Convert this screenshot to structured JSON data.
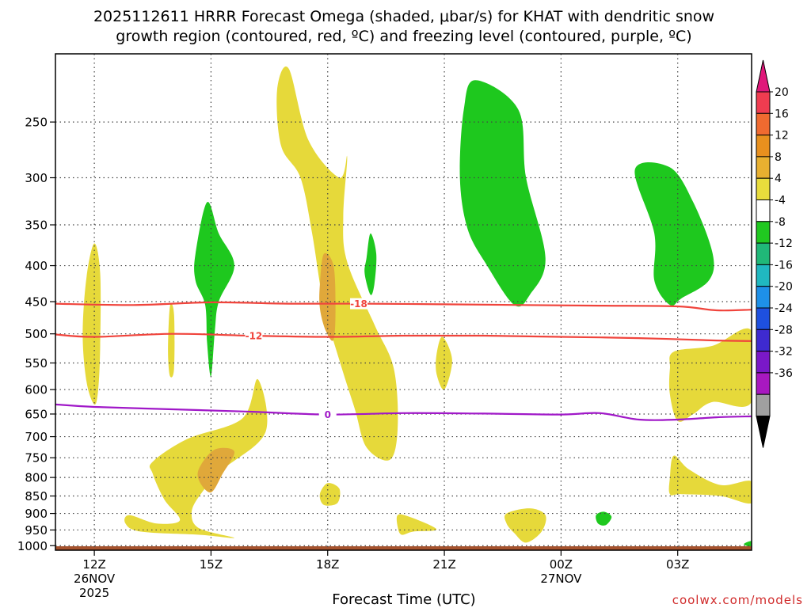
{
  "title": {
    "line1": "2025112611 HRRR Forecast Omega (shaded, μbar/s) for KHAT with dendritic snow",
    "line2": "growth region (contoured, red, ºC) and freezing level (contoured, purple, ºC)"
  },
  "credit": "coolwx.com/models",
  "chart_data": {
    "type": "contour",
    "xlabel": "Forecast Time (UTC)",
    "x_ticks": [
      {
        "hour": 12,
        "lines": [
          "12Z",
          "26NOV",
          "2025"
        ]
      },
      {
        "hour": 15,
        "lines": [
          "15Z"
        ]
      },
      {
        "hour": 18,
        "lines": [
          "18Z"
        ]
      },
      {
        "hour": 21,
        "lines": [
          "21Z"
        ]
      },
      {
        "hour": 24,
        "lines": [
          "00Z",
          "27NOV"
        ]
      },
      {
        "hour": 27,
        "lines": [
          "03Z"
        ]
      }
    ],
    "xlim_hours": [
      11,
      28.9
    ],
    "y_ticks_hPa": [
      250,
      300,
      350,
      400,
      450,
      500,
      550,
      600,
      650,
      700,
      750,
      800,
      850,
      900,
      950,
      1000
    ],
    "ylim_hPa": [
      200,
      1015
    ],
    "yscale": "log",
    "grid": true,
    "colorbar": {
      "labels": [
        "20",
        "16",
        "12",
        "8",
        "4",
        "-4",
        "-8",
        "-12",
        "-16",
        "-20",
        "-24",
        "-28",
        "-32",
        "-36"
      ],
      "colors": [
        "#f03c50",
        "#f06a30",
        "#e8901e",
        "#e8b030",
        "#e8dc3c",
        "#ffffff",
        "#20c820",
        "#20b878",
        "#20b8c0",
        "#1e90e8",
        "#1e50e0",
        "#3e2ad0",
        "#7a18c8",
        "#a818c0",
        "#a0a0a0"
      ],
      "top_arrow_color": "#e0187a",
      "bottom_arrow_color": "#000000"
    },
    "shading_colors": {
      "omega_4_8": "#e6d93a",
      "omega_8_12": "#e0a83a",
      "omega_neg4_neg8": "#1ec81e",
      "ground": "#a5522d"
    },
    "contours": [
      {
        "name": "-18",
        "label": "-18",
        "color": "#f0443c",
        "label_hour": 18.8,
        "points": [
          [
            11,
            453
          ],
          [
            13,
            455
          ],
          [
            15,
            451
          ],
          [
            17,
            453
          ],
          [
            19,
            453
          ],
          [
            21,
            454
          ],
          [
            23,
            455
          ],
          [
            25,
            456
          ],
          [
            27,
            457
          ],
          [
            28,
            463
          ],
          [
            28.9,
            462
          ]
        ]
      },
      {
        "name": "-12",
        "label": "-12",
        "color": "#f0443c",
        "label_hour": 16.1,
        "points": [
          [
            11,
            501
          ],
          [
            12,
            505
          ],
          [
            14,
            500
          ],
          [
            16,
            503
          ],
          [
            18,
            505
          ],
          [
            20,
            503
          ],
          [
            22,
            503
          ],
          [
            24,
            505
          ],
          [
            26,
            507
          ],
          [
            28,
            511
          ],
          [
            28.9,
            512
          ]
        ]
      },
      {
        "name": "0",
        "label": "0",
        "color": "#a018c8",
        "label_hour": 18,
        "points": [
          [
            11,
            630
          ],
          [
            12,
            635
          ],
          [
            14,
            640
          ],
          [
            16,
            645
          ],
          [
            18,
            651
          ],
          [
            20,
            648
          ],
          [
            22,
            649
          ],
          [
            24,
            651
          ],
          [
            25,
            648
          ],
          [
            26,
            662
          ],
          [
            27,
            662
          ],
          [
            28,
            657
          ],
          [
            28.9,
            655
          ]
        ]
      }
    ],
    "omega_regions": [
      {
        "level": "4_8",
        "points": [
          [
            11.8,
            415
          ],
          [
            12.0,
            372
          ],
          [
            12.15,
            410
          ],
          [
            12.15,
            520
          ],
          [
            12.1,
            600
          ],
          [
            12.0,
            630
          ],
          [
            11.8,
            585
          ],
          [
            11.7,
            500
          ]
        ]
      },
      {
        "level": "4_8",
        "points": [
          [
            13.9,
            505
          ],
          [
            13.95,
            455
          ],
          [
            14.05,
            470
          ],
          [
            14.05,
            560
          ],
          [
            13.95,
            575
          ],
          [
            13.9,
            545
          ]
        ]
      },
      {
        "level": "4_8",
        "points": [
          [
            13.5,
            760
          ],
          [
            14.4,
            705
          ],
          [
            15.8,
            660
          ],
          [
            16.2,
            580
          ],
          [
            16.4,
            690
          ],
          [
            15.3,
            780
          ],
          [
            14.7,
            850
          ],
          [
            14.5,
            900
          ],
          [
            14.7,
            945
          ],
          [
            15.6,
            975
          ],
          [
            14.7,
            965
          ],
          [
            13.2,
            955
          ],
          [
            12.8,
            930
          ],
          [
            12.9,
            905
          ],
          [
            13.6,
            930
          ],
          [
            14.2,
            920
          ],
          [
            13.8,
            860
          ],
          [
            13.5,
            790
          ]
        ]
      },
      {
        "level": "4_8",
        "points": [
          [
            16.7,
            225
          ],
          [
            17.0,
            210
          ],
          [
            17.5,
            265
          ],
          [
            18.3,
            300
          ],
          [
            18.5,
            280
          ],
          [
            18.4,
            340
          ],
          [
            18.5,
            395
          ],
          [
            19.2,
            485
          ],
          [
            19.7,
            560
          ],
          [
            19.8,
            680
          ],
          [
            19.6,
            755
          ],
          [
            19.0,
            725
          ],
          [
            18.7,
            640
          ],
          [
            18.3,
            545
          ],
          [
            17.9,
            455
          ],
          [
            17.6,
            360
          ],
          [
            17.3,
            300
          ],
          [
            16.8,
            270
          ]
        ]
      },
      {
        "level": "4_8",
        "points": [
          [
            17.8,
            845
          ],
          [
            18.0,
            815
          ],
          [
            18.3,
            830
          ],
          [
            18.25,
            870
          ],
          [
            17.9,
            875
          ]
        ]
      },
      {
        "level": "4_8",
        "points": [
          [
            19.8,
            905
          ],
          [
            20.1,
            910
          ],
          [
            20.8,
            948
          ],
          [
            20.2,
            955
          ],
          [
            19.9,
            965
          ],
          [
            19.8,
            940
          ]
        ]
      },
      {
        "level": "4_8",
        "points": [
          [
            20.8,
            535
          ],
          [
            20.95,
            505
          ],
          [
            21.2,
            545
          ],
          [
            21.0,
            600
          ],
          [
            20.8,
            570
          ]
        ]
      },
      {
        "level": "4_8",
        "points": [
          [
            22.6,
            900
          ],
          [
            23.2,
            885
          ],
          [
            23.6,
            905
          ],
          [
            23.5,
            955
          ],
          [
            23.1,
            990
          ],
          [
            22.8,
            960
          ],
          [
            22.6,
            930
          ]
        ]
      },
      {
        "level": "4_8",
        "points": [
          [
            26.8,
            560
          ],
          [
            26.9,
            530
          ],
          [
            27.9,
            520
          ],
          [
            28.9,
            495
          ],
          [
            28.9,
            625
          ],
          [
            27.9,
            625
          ],
          [
            27.4,
            650
          ],
          [
            27.0,
            665
          ],
          [
            26.8,
            610
          ]
        ]
      },
      {
        "level": "4_8",
        "points": [
          [
            26.8,
            800
          ],
          [
            26.9,
            745
          ],
          [
            27.3,
            780
          ],
          [
            28.1,
            820
          ],
          [
            28.9,
            810
          ],
          [
            28.9,
            870
          ],
          [
            28.1,
            850
          ],
          [
            27.1,
            845
          ],
          [
            26.8,
            845
          ]
        ]
      },
      {
        "level": "8_12",
        "points": [
          [
            17.8,
            425
          ],
          [
            17.9,
            385
          ],
          [
            18.15,
            400
          ],
          [
            18.2,
            460
          ],
          [
            18.15,
            510
          ],
          [
            17.95,
            495
          ],
          [
            17.8,
            460
          ]
        ]
      },
      {
        "level": "8_12",
        "points": [
          [
            14.7,
            775
          ],
          [
            15.1,
            730
          ],
          [
            15.6,
            735
          ],
          [
            15.3,
            790
          ],
          [
            15.0,
            840
          ],
          [
            14.7,
            810
          ]
        ]
      },
      {
        "level": "neg4_neg8",
        "points": [
          [
            14.6,
            385
          ],
          [
            14.9,
            325
          ],
          [
            15.2,
            360
          ],
          [
            15.6,
            400
          ],
          [
            15.2,
            450
          ],
          [
            15.1,
            495
          ],
          [
            15.0,
            575
          ],
          [
            14.9,
            515
          ],
          [
            14.85,
            455
          ],
          [
            14.6,
            420
          ]
        ]
      },
      {
        "level": "neg4_neg8",
        "points": [
          [
            19.0,
            390
          ],
          [
            19.1,
            360
          ],
          [
            19.25,
            385
          ],
          [
            19.2,
            425
          ],
          [
            19.1,
            440
          ],
          [
            18.95,
            410
          ]
        ]
      },
      {
        "level": "neg4_neg8",
        "points": [
          [
            21.5,
            240
          ],
          [
            21.8,
            218
          ],
          [
            22.9,
            240
          ],
          [
            23.1,
            300
          ],
          [
            23.6,
            390
          ],
          [
            23.2,
            440
          ],
          [
            22.8,
            455
          ],
          [
            22.1,
            400
          ],
          [
            21.6,
            355
          ],
          [
            21.4,
            300
          ]
        ]
      },
      {
        "level": "neg4_neg8",
        "points": [
          [
            25.9,
            292
          ],
          [
            26.8,
            290
          ],
          [
            27.4,
            325
          ],
          [
            27.9,
            385
          ],
          [
            27.8,
            420
          ],
          [
            27.1,
            445
          ],
          [
            26.8,
            455
          ],
          [
            26.4,
            420
          ],
          [
            26.4,
            360
          ]
        ]
      },
      {
        "level": "neg4_neg8",
        "points": [
          [
            24.9,
            905
          ],
          [
            25.1,
            895
          ],
          [
            25.3,
            910
          ],
          [
            25.15,
            935
          ],
          [
            24.95,
            930
          ]
        ]
      },
      {
        "level": "neg4_neg8",
        "points": [
          [
            28.7,
            995
          ],
          [
            28.9,
            985
          ],
          [
            28.9,
            1005
          ]
        ]
      }
    ],
    "ground": {
      "from_hour": 11,
      "to_hour": 28.9,
      "top_hPa": 1002
    }
  }
}
